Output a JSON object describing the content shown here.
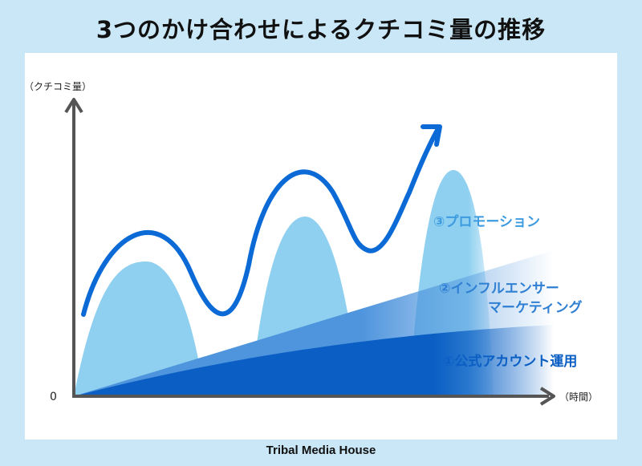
{
  "title": "3つのかけ合わせによるクチコミ量の推移",
  "footer": "Tribal Media House",
  "axes": {
    "y_label": "（クチコミ量）",
    "x_label": "（時間）",
    "origin": "0"
  },
  "layers": [
    {
      "label": "①公式アカウント運用",
      "color": "#0b5fc4"
    },
    {
      "label_lines": [
        "②インフルエンサー",
        "マーケティング"
      ],
      "color": "#4f95dd"
    },
    {
      "label": "③プロモーション",
      "color": "#7ec8ee"
    }
  ],
  "colors": {
    "background": "#c9e7f6",
    "trend_line": "#0b6ad6",
    "axis": "#555555"
  }
}
